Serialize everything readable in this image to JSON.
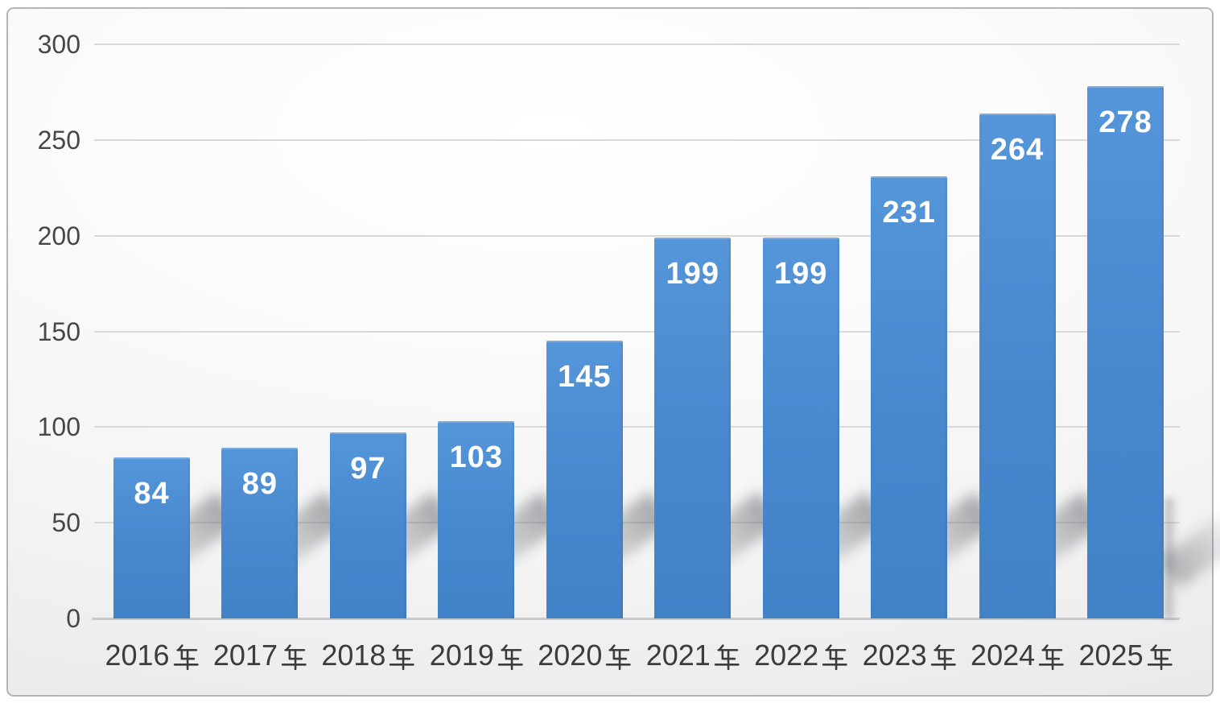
{
  "chart_data": {
    "type": "bar",
    "title": "",
    "categories": [
      "2016年",
      "2017年",
      "2018年",
      "2019年",
      "2020年",
      "2021年",
      "2022年",
      "2023年",
      "2024年",
      "2025年"
    ],
    "values": [
      84,
      89,
      97,
      103,
      145,
      199,
      199,
      231,
      264,
      278
    ],
    "xlabel": "",
    "ylabel": "",
    "ylim": [
      0,
      300
    ],
    "yticks": [
      0,
      50,
      100,
      150,
      200,
      250,
      300
    ],
    "grid": true,
    "legend_position": "none",
    "year_suffix": "年",
    "colors": {
      "bar": "#4A8CD2",
      "bar_value_label": "#FFFFFF",
      "axis_text": "#424242",
      "gridline": "#D9D9D9",
      "frame_border": "#B3B6B9"
    }
  }
}
